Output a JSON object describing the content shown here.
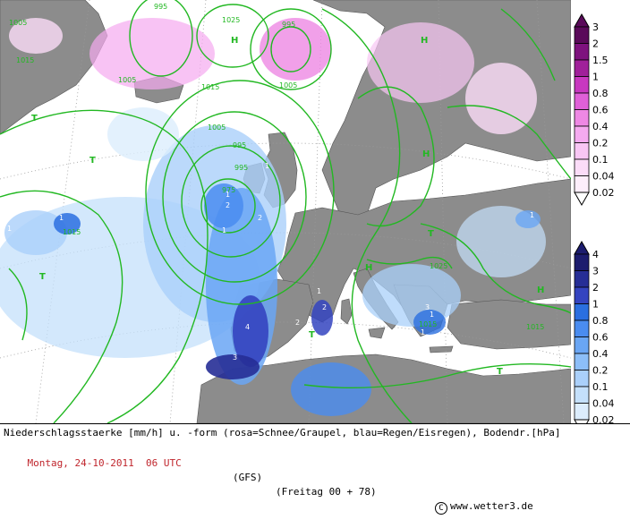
{
  "map": {
    "colors": {
      "sea": "#ffffff",
      "land": "#8c8c8c",
      "isobar": "#22b822",
      "snow": "#e060d8",
      "rain": "#2a6fe0",
      "dotted_grid": "#9a9a9a"
    },
    "isobar_labels": [
      "1005",
      "1025",
      "995",
      "1005",
      "1015",
      "1005",
      "1015",
      "1005",
      "995",
      "995",
      "975",
      "1015",
      "1025",
      "1015",
      "1015",
      "995"
    ],
    "pressure_centers": [
      "H",
      "H",
      "T",
      "T",
      "T",
      "H",
      "H",
      "T",
      "T",
      "T",
      "H"
    ],
    "precip_labels": [
      "1",
      "1",
      "2",
      "1",
      "1",
      "2",
      "1",
      "2",
      "4",
      "3",
      "1",
      "1",
      "1",
      "2",
      "1",
      "1",
      "3",
      "1"
    ]
  },
  "legend": {
    "snow_scale": {
      "values": [
        "3",
        "2",
        "1.5",
        "1",
        "0.8",
        "0.6",
        "0.4",
        "0.2",
        "0.1",
        "0.04",
        "0.02"
      ],
      "colors": [
        "#5a0a5a",
        "#7e127e",
        "#a0209a",
        "#c838c0",
        "#e060d8",
        "#ee88e4",
        "#f5aaf0",
        "#f8c6f4",
        "#fbdcf8",
        "#fdeefb",
        "#ffffff"
      ]
    },
    "rain_scale": {
      "values": [
        "4",
        "3",
        "2",
        "1",
        "0.8",
        "0.6",
        "0.4",
        "0.2",
        "0.1",
        "0.04",
        "0.02"
      ],
      "colors": [
        "#1c1c6e",
        "#262e96",
        "#3444c0",
        "#2a6fe0",
        "#4a8cf0",
        "#6aa6f4",
        "#8cbef8",
        "#aad0fa",
        "#c4e0fb",
        "#dcedfd",
        "#ffffff"
      ]
    }
  },
  "footer": {
    "description": "Niederschlagsstaerke [mm/h] u. -form (rosa=Schnee/Graupel, blau=Regen/Eisregen), Bodendr.[hPa]",
    "date": "Montag, 24-10-2011  06 UTC",
    "model": "(GFS)",
    "run": "(Freitag 00 + 78)",
    "credit": "www.wetter3.de",
    "copyright_symbol": "C"
  }
}
